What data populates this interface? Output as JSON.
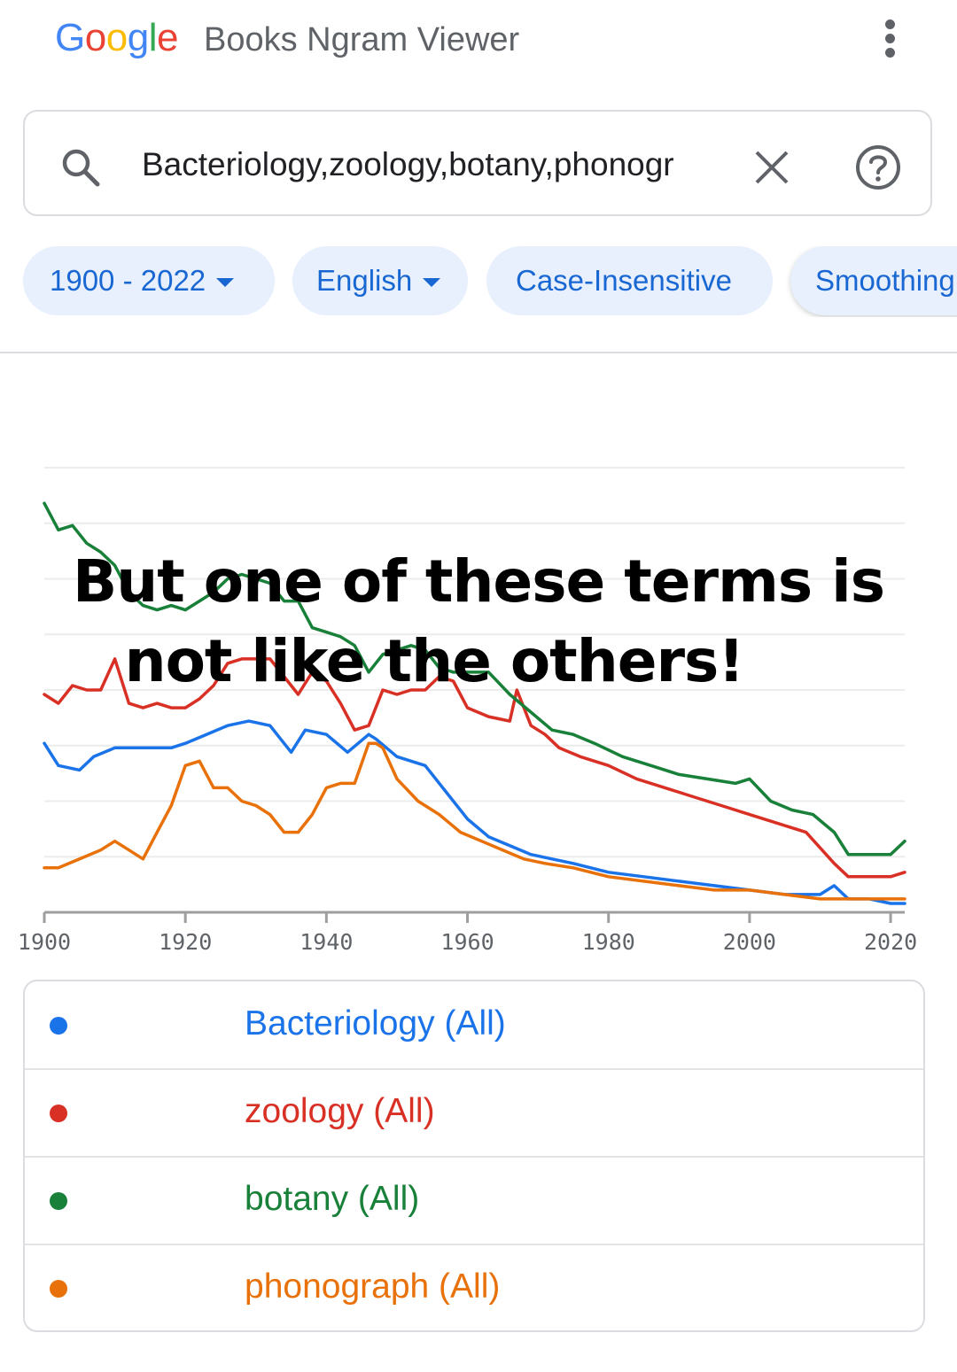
{
  "header": {
    "logo_letters": [
      {
        "ch": "G",
        "color": "#4285f4"
      },
      {
        "ch": "o",
        "color": "#ea4335"
      },
      {
        "ch": "o",
        "color": "#fbbc05"
      },
      {
        "ch": "g",
        "color": "#4285f4"
      },
      {
        "ch": "l",
        "color": "#34a853"
      },
      {
        "ch": "e",
        "color": "#ea4335"
      }
    ],
    "title": "Books Ngram Viewer",
    "menu_icon": "more-vert-icon"
  },
  "search": {
    "value": "Bacteriology,zoology,botany,phonogr",
    "search_icon": "search-icon",
    "clear_icon": "close-icon",
    "help_icon": "help-icon"
  },
  "filters": {
    "years": "1900 - 2022",
    "language": "English",
    "case": "Case-Insensitive",
    "smoothing": "Smoothing"
  },
  "overlay": {
    "line1": "But one of these terms is",
    "line2": "not like the others!"
  },
  "chart_data": {
    "type": "line",
    "xlim": [
      1900,
      2022
    ],
    "ylim": [
      0,
      100
    ],
    "grid": true,
    "x_ticks": [
      "1900",
      "1920",
      "1940",
      "1960",
      "1980",
      "2000",
      "2020"
    ],
    "series": [
      {
        "name": "Bacteriology (All)",
        "color": "#1a73e8",
        "x": [
          1900,
          1902,
          1905,
          1907,
          1910,
          1913,
          1915,
          1918,
          1920,
          1923,
          1926,
          1929,
          1932,
          1935,
          1937,
          1940,
          1943,
          1946,
          1947,
          1950,
          1954,
          1957,
          1960,
          1963,
          1966,
          1969,
          1972,
          1975,
          1980,
          1985,
          1990,
          1995,
          2000,
          2005,
          2010,
          2012,
          2014,
          2017,
          2020,
          2022
        ],
        "y": [
          38,
          33,
          32,
          35,
          37,
          37,
          37,
          37,
          38,
          40,
          42,
          43,
          42,
          36,
          41,
          40,
          36,
          40,
          39,
          35,
          33,
          27,
          21,
          17,
          15,
          13,
          12,
          11,
          9,
          8,
          7,
          6,
          5,
          4,
          4,
          6,
          3,
          3,
          2,
          2
        ]
      },
      {
        "name": "zoology (All)",
        "color": "#d93025",
        "x": [
          1900,
          1902,
          1904,
          1906,
          1908,
          1910,
          1912,
          1914,
          1916,
          1918,
          1920,
          1922,
          1924,
          1926,
          1928,
          1930,
          1932,
          1934,
          1936,
          1938,
          1940,
          1942,
          1944,
          1946,
          1948,
          1950,
          1952,
          1954,
          1956,
          1958,
          1960,
          1963,
          1966,
          1967,
          1969,
          1971,
          1973,
          1976,
          1980,
          1984,
          1988,
          1992,
          1996,
          2000,
          2004,
          2008,
          2012,
          2014,
          2016,
          2020,
          2022
        ],
        "y": [
          49,
          47,
          51,
          50,
          50,
          57,
          47,
          46,
          47,
          46,
          46,
          48,
          51,
          56,
          57,
          57,
          57,
          53,
          49,
          54,
          52,
          47,
          41,
          42,
          50,
          49,
          50,
          50,
          53,
          52,
          46,
          44,
          43,
          50,
          42,
          40,
          37,
          35,
          33,
          30,
          28,
          26,
          24,
          22,
          20,
          18,
          11,
          8,
          8,
          8,
          9
        ]
      },
      {
        "name": "botany (All)",
        "color": "#188038",
        "x": [
          1900,
          1902,
          1904,
          1906,
          1908,
          1910,
          1912,
          1914,
          1916,
          1918,
          1920,
          1922,
          1924,
          1926,
          1928,
          1930,
          1932,
          1934,
          1936,
          1938,
          1940,
          1942,
          1944,
          1946,
          1948,
          1950,
          1952,
          1954,
          1956,
          1958,
          1960,
          1963,
          1966,
          1969,
          1972,
          1975,
          1978,
          1982,
          1986,
          1990,
          1994,
          1998,
          2000,
          2003,
          2006,
          2009,
          2012,
          2014,
          2016,
          2020,
          2022
        ],
        "y": [
          92,
          86,
          87,
          83,
          81,
          78,
          72,
          69,
          68,
          69,
          68,
          70,
          72,
          75,
          76,
          75,
          74,
          70,
          70,
          64,
          63,
          62,
          60,
          54,
          58,
          59,
          60,
          59,
          55,
          54,
          54,
          54,
          49,
          45,
          41,
          40,
          38,
          35,
          33,
          31,
          30,
          29,
          30,
          25,
          23,
          22,
          18,
          13,
          13,
          13,
          16
        ]
      },
      {
        "name": "phonograph (All)",
        "color": "#e8710a",
        "x": [
          1900,
          1902,
          1905,
          1908,
          1910,
          1912,
          1914,
          1916,
          1918,
          1920,
          1922,
          1924,
          1926,
          1928,
          1930,
          1932,
          1934,
          1936,
          1938,
          1940,
          1942,
          1944,
          1946,
          1947,
          1948,
          1950,
          1953,
          1956,
          1959,
          1962,
          1965,
          1968,
          1971,
          1975,
          1980,
          1985,
          1990,
          1995,
          2000,
          2005,
          2010,
          2015,
          2020,
          2022
        ],
        "y": [
          10,
          10,
          12,
          14,
          16,
          14,
          12,
          18,
          24,
          33,
          34,
          28,
          28,
          25,
          24,
          22,
          18,
          18,
          22,
          28,
          29,
          29,
          38,
          38,
          37,
          30,
          25,
          22,
          18,
          16,
          14,
          12,
          11,
          10,
          8,
          7,
          6,
          5,
          5,
          4,
          3,
          3,
          3,
          3
        ]
      }
    ]
  },
  "legend": [
    {
      "label": "Bacteriology (All)",
      "color": "#1a73e8"
    },
    {
      "label": "zoology (All)",
      "color": "#d93025"
    },
    {
      "label": "botany (All)",
      "color": "#188038"
    },
    {
      "label": "phonograph (All)",
      "color": "#e8710a"
    }
  ]
}
